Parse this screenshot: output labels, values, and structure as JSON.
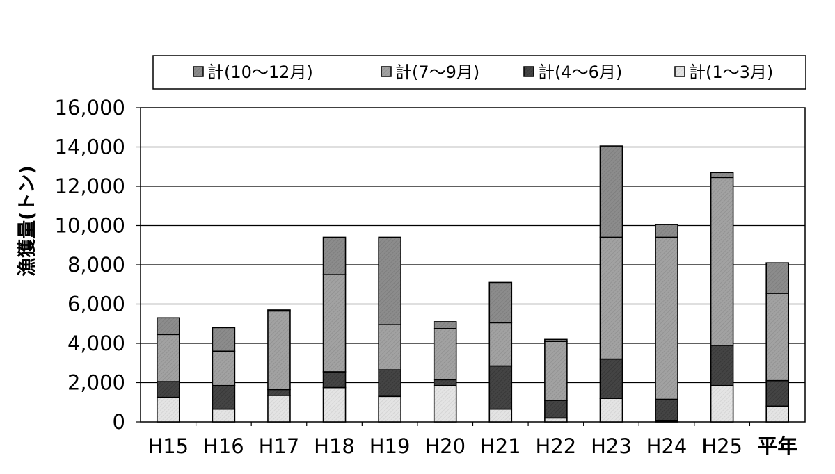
{
  "chart_data": {
    "type": "bar",
    "stacked": true,
    "title": "",
    "xlabel": "",
    "ylabel": "漁獲量(トン)",
    "ylim": [
      0,
      16000
    ],
    "yticks": [
      0,
      2000,
      4000,
      6000,
      8000,
      10000,
      12000,
      14000,
      16000
    ],
    "ytick_labels": [
      "0",
      "2,000",
      "4,000",
      "6,000",
      "8,000",
      "10,000",
      "12,000",
      "14,000",
      "16,000"
    ],
    "grid": true,
    "legend_position": "top",
    "categories": [
      "H15",
      "H16",
      "H17",
      "H18",
      "H19",
      "H20",
      "H21",
      "H22",
      "H23",
      "H24",
      "H25",
      "平年"
    ],
    "series": [
      {
        "name": "計(1～3月)",
        "color": "#e0e0e0",
        "values": [
          1250,
          650,
          1350,
          1750,
          1300,
          1850,
          650,
          200,
          1200,
          50,
          1850,
          800
        ]
      },
      {
        "name": "計(4～6月)",
        "color": "#404040",
        "values": [
          800,
          1200,
          300,
          800,
          1350,
          300,
          2200,
          900,
          2000,
          1100,
          2050,
          1300
        ]
      },
      {
        "name": "計(7～9月)",
        "color": "#a0a0a0",
        "values": [
          2400,
          1750,
          4000,
          4950,
          2300,
          2600,
          2200,
          3000,
          6200,
          8250,
          8550,
          4450
        ]
      },
      {
        "name": "計(10～12月)",
        "color": "#8c8c8c",
        "values": [
          850,
          1200,
          50,
          1900,
          4450,
          350,
          2050,
          100,
          4650,
          650,
          250,
          1550
        ]
      }
    ],
    "legend_order": [
      "計(10～12月)",
      "計(7～9月)",
      "計(4～6月)",
      "計(1～3月)"
    ]
  }
}
